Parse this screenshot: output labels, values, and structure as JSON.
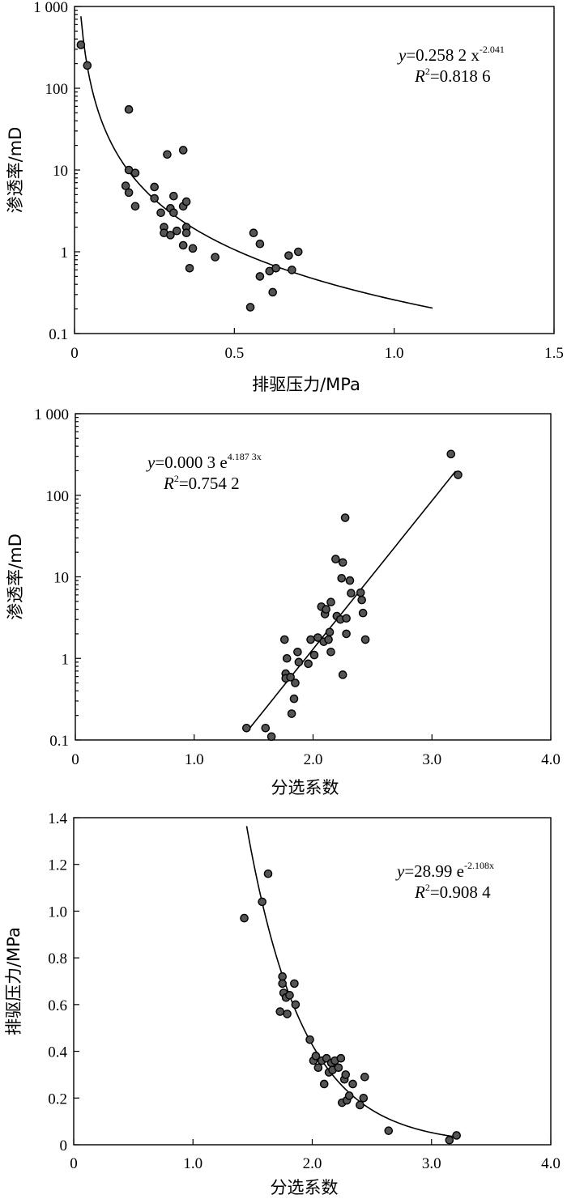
{
  "chart_data": [
    {
      "type": "scatter",
      "xlabel": "排驱压力/MPa",
      "ylabel": "渗透率/mD",
      "xlim": [
        0,
        1.5
      ],
      "ylim": [
        0.1,
        1000
      ],
      "yscale": "log",
      "xticks": [
        {
          "v": 0,
          "label": "0"
        },
        {
          "v": 0.5,
          "label": "0.5"
        },
        {
          "v": 1.0,
          "label": "1.0"
        },
        {
          "v": 1.5,
          "label": "1.5"
        }
      ],
      "yticks": [
        {
          "v": 0.1,
          "label": "0.1"
        },
        {
          "v": 1,
          "label": "1"
        },
        {
          "v": 10,
          "label": "10"
        },
        {
          "v": 100,
          "label": "100"
        },
        {
          "v": 1000,
          "label": "1 000"
        }
      ],
      "equation": {
        "lhs": "y",
        "body": "=0.258 2 x",
        "sup": "-2.041",
        "r2": "=0.818 6"
      },
      "fit": {
        "kind": "power",
        "a": 0.2582,
        "b": -2.041,
        "xrange": [
          0.02,
          1.12
        ]
      },
      "points": [
        [
          0.02,
          340
        ],
        [
          0.04,
          190
        ],
        [
          0.17,
          55
        ],
        [
          0.16,
          6.4
        ],
        [
          0.17,
          5.3
        ],
        [
          0.17,
          10
        ],
        [
          0.19,
          9.2
        ],
        [
          0.19,
          3.6
        ],
        [
          0.25,
          6.2
        ],
        [
          0.25,
          4.5
        ],
        [
          0.27,
          3.0
        ],
        [
          0.28,
          2.0
        ],
        [
          0.28,
          1.7
        ],
        [
          0.29,
          15.5
        ],
        [
          0.3,
          3.4
        ],
        [
          0.3,
          1.6
        ],
        [
          0.31,
          4.8
        ],
        [
          0.31,
          3.0
        ],
        [
          0.32,
          1.8
        ],
        [
          0.34,
          17.5
        ],
        [
          0.34,
          3.6
        ],
        [
          0.34,
          1.2
        ],
        [
          0.35,
          4.1
        ],
        [
          0.35,
          2.0
        ],
        [
          0.35,
          1.7
        ],
        [
          0.36,
          0.63
        ],
        [
          0.37,
          1.1
        ],
        [
          0.44,
          0.86
        ],
        [
          0.56,
          1.7
        ],
        [
          0.58,
          1.25
        ],
        [
          0.58,
          0.5
        ],
        [
          0.55,
          0.21
        ],
        [
          0.61,
          0.58
        ],
        [
          0.62,
          0.32
        ],
        [
          0.63,
          0.63
        ],
        [
          0.67,
          0.9
        ],
        [
          0.68,
          0.6
        ],
        [
          0.7,
          1.0
        ]
      ]
    },
    {
      "type": "scatter",
      "xlabel": "分选系数",
      "ylabel": "渗透率/mD",
      "xlim": [
        0,
        4.0
      ],
      "ylim": [
        0.1,
        1000
      ],
      "yscale": "log",
      "xticks": [
        {
          "v": 0,
          "label": "0"
        },
        {
          "v": 1,
          "label": "1.0"
        },
        {
          "v": 2,
          "label": "2.0"
        },
        {
          "v": 3,
          "label": "3.0"
        },
        {
          "v": 4,
          "label": "4.0"
        }
      ],
      "yticks": [
        {
          "v": 0.1,
          "label": "0.1"
        },
        {
          "v": 1,
          "label": "1"
        },
        {
          "v": 10,
          "label": "10"
        },
        {
          "v": 100,
          "label": "100"
        },
        {
          "v": 1000,
          "label": "1 000"
        }
      ],
      "equation": {
        "lhs": "y",
        "body": "=0.000 3 e",
        "sup": "4.187 3x",
        "r2": "=0.754 2"
      },
      "fit": {
        "kind": "exp",
        "a": 0.0003,
        "b": 4.1873,
        "xrange": [
          1.45,
          3.2
        ]
      },
      "points": [
        [
          1.44,
          0.14
        ],
        [
          1.6,
          0.14
        ],
        [
          1.65,
          0.11
        ],
        [
          1.76,
          1.7
        ],
        [
          1.77,
          0.65
        ],
        [
          1.77,
          0.57
        ],
        [
          1.78,
          1.0
        ],
        [
          1.81,
          0.59
        ],
        [
          1.82,
          0.21
        ],
        [
          1.84,
          0.32
        ],
        [
          1.85,
          0.5
        ],
        [
          1.87,
          1.2
        ],
        [
          1.88,
          0.9
        ],
        [
          1.96,
          0.86
        ],
        [
          1.98,
          1.7
        ],
        [
          2.01,
          1.1
        ],
        [
          2.04,
          1.8
        ],
        [
          2.07,
          4.3
        ],
        [
          2.09,
          1.6
        ],
        [
          2.1,
          3.5
        ],
        [
          2.11,
          4.0
        ],
        [
          2.13,
          1.7
        ],
        [
          2.14,
          2.1
        ],
        [
          2.15,
          4.9
        ],
        [
          2.15,
          1.2
        ],
        [
          2.19,
          16.5
        ],
        [
          2.2,
          3.3
        ],
        [
          2.23,
          3.0
        ],
        [
          2.24,
          9.6
        ],
        [
          2.25,
          15.0
        ],
        [
          2.25,
          0.63
        ],
        [
          2.27,
          53
        ],
        [
          2.28,
          3.1
        ],
        [
          2.28,
          2.0
        ],
        [
          2.31,
          9.0
        ],
        [
          2.32,
          6.3
        ],
        [
          2.4,
          6.4
        ],
        [
          2.41,
          5.2
        ],
        [
          2.42,
          3.6
        ],
        [
          2.44,
          1.7
        ],
        [
          3.16,
          320
        ],
        [
          3.22,
          178
        ]
      ]
    },
    {
      "type": "scatter",
      "xlabel": "分选系数",
      "ylabel": "排驱压力/MPa",
      "xlim": [
        0,
        4.0
      ],
      "ylim": [
        0,
        1.4
      ],
      "yscale": "linear",
      "xticks": [
        {
          "v": 0,
          "label": "0"
        },
        {
          "v": 1,
          "label": "1.0"
        },
        {
          "v": 2,
          "label": "2.0"
        },
        {
          "v": 3,
          "label": "3.0"
        },
        {
          "v": 4,
          "label": "4.0"
        }
      ],
      "yticks": [
        {
          "v": 0,
          "label": "0"
        },
        {
          "v": 0.2,
          "label": "0.2"
        },
        {
          "v": 0.4,
          "label": "0.4"
        },
        {
          "v": 0.6,
          "label": "0.6"
        },
        {
          "v": 0.8,
          "label": "0.8"
        },
        {
          "v": 1.0,
          "label": "1.0"
        },
        {
          "v": 1.2,
          "label": "1.2"
        },
        {
          "v": 1.4,
          "label": "1.4"
        }
      ],
      "equation": {
        "lhs": "y",
        "body": "=28.99 e",
        "sup": "-2.108x",
        "r2": "=0.908 4"
      },
      "fit": {
        "kind": "exp",
        "a": 28.99,
        "b": -2.108,
        "xrange": [
          1.45,
          3.22
        ]
      },
      "points": [
        [
          1.43,
          0.97
        ],
        [
          1.58,
          1.04
        ],
        [
          1.63,
          1.16
        ],
        [
          1.73,
          0.57
        ],
        [
          1.75,
          0.72
        ],
        [
          1.75,
          0.69
        ],
        [
          1.76,
          0.65
        ],
        [
          1.78,
          0.63
        ],
        [
          1.81,
          0.64
        ],
        [
          1.79,
          0.56
        ],
        [
          1.85,
          0.69
        ],
        [
          1.86,
          0.6
        ],
        [
          1.98,
          0.45
        ],
        [
          2.01,
          0.36
        ],
        [
          2.03,
          0.38
        ],
        [
          2.05,
          0.33
        ],
        [
          2.08,
          0.36
        ],
        [
          2.1,
          0.26
        ],
        [
          2.12,
          0.37
        ],
        [
          2.14,
          0.31
        ],
        [
          2.16,
          0.35
        ],
        [
          2.17,
          0.32
        ],
        [
          2.19,
          0.36
        ],
        [
          2.22,
          0.33
        ],
        [
          2.24,
          0.37
        ],
        [
          2.25,
          0.18
        ],
        [
          2.27,
          0.28
        ],
        [
          2.28,
          0.3
        ],
        [
          2.29,
          0.19
        ],
        [
          2.31,
          0.21
        ],
        [
          2.34,
          0.26
        ],
        [
          2.4,
          0.17
        ],
        [
          2.43,
          0.2
        ],
        [
          2.44,
          0.29
        ],
        [
          2.64,
          0.06
        ],
        [
          3.15,
          0.02
        ],
        [
          3.21,
          0.04
        ]
      ]
    }
  ]
}
